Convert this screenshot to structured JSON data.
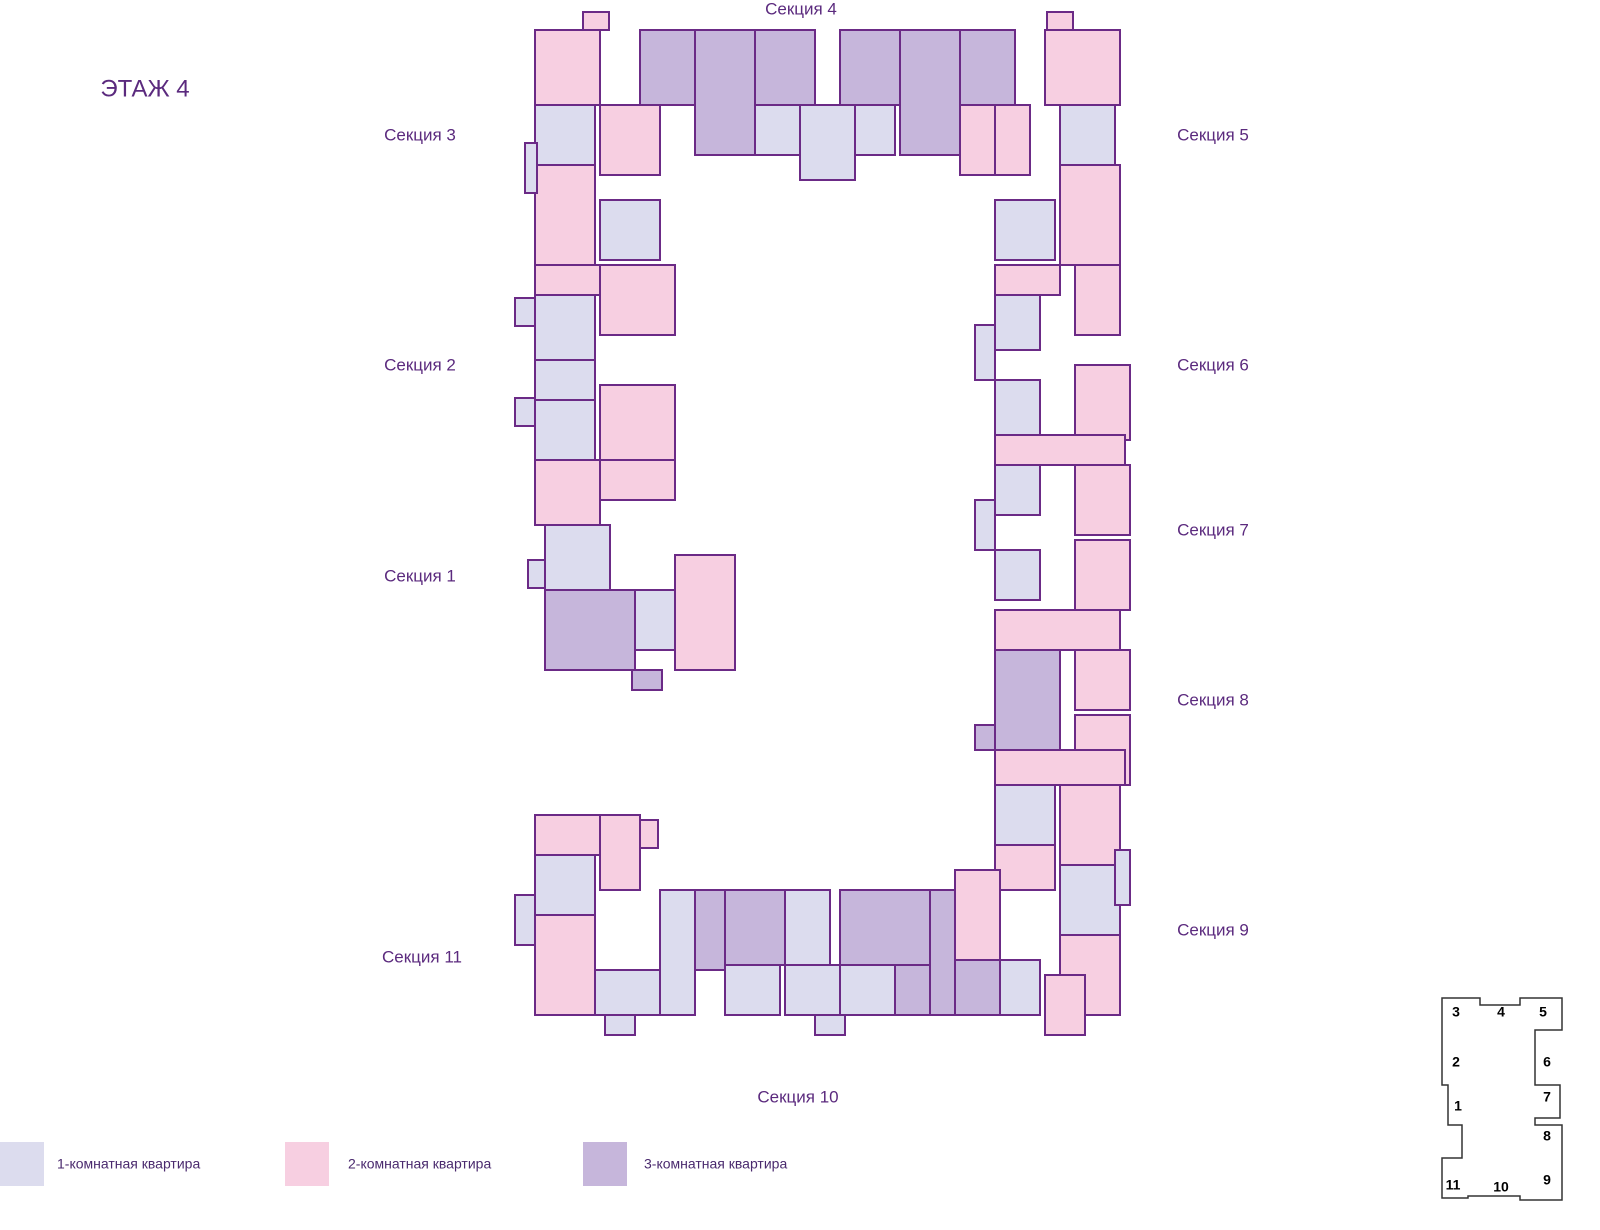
{
  "title": "ЭТАЖ 4",
  "sections": [
    "Секция 4",
    "Секция 3",
    "Секция 5",
    "Секция 2",
    "Секция 6",
    "Секция 1",
    "Секция 7",
    "Секция 8",
    "Секция 9",
    "Секция 11",
    "Секция 10"
  ],
  "legend": [
    {
      "label": "1-комнатная квартира",
      "color": "#dcdcee"
    },
    {
      "label": "2-комнатная квартира",
      "color": "#f7cfe1"
    },
    {
      "label": "3-комнатная квартира",
      "color": "#c6b6db"
    }
  ],
  "minimap": [
    "3",
    "4",
    "5",
    "2",
    "6",
    "1",
    "7",
    "8",
    "9",
    "11",
    "10"
  ]
}
